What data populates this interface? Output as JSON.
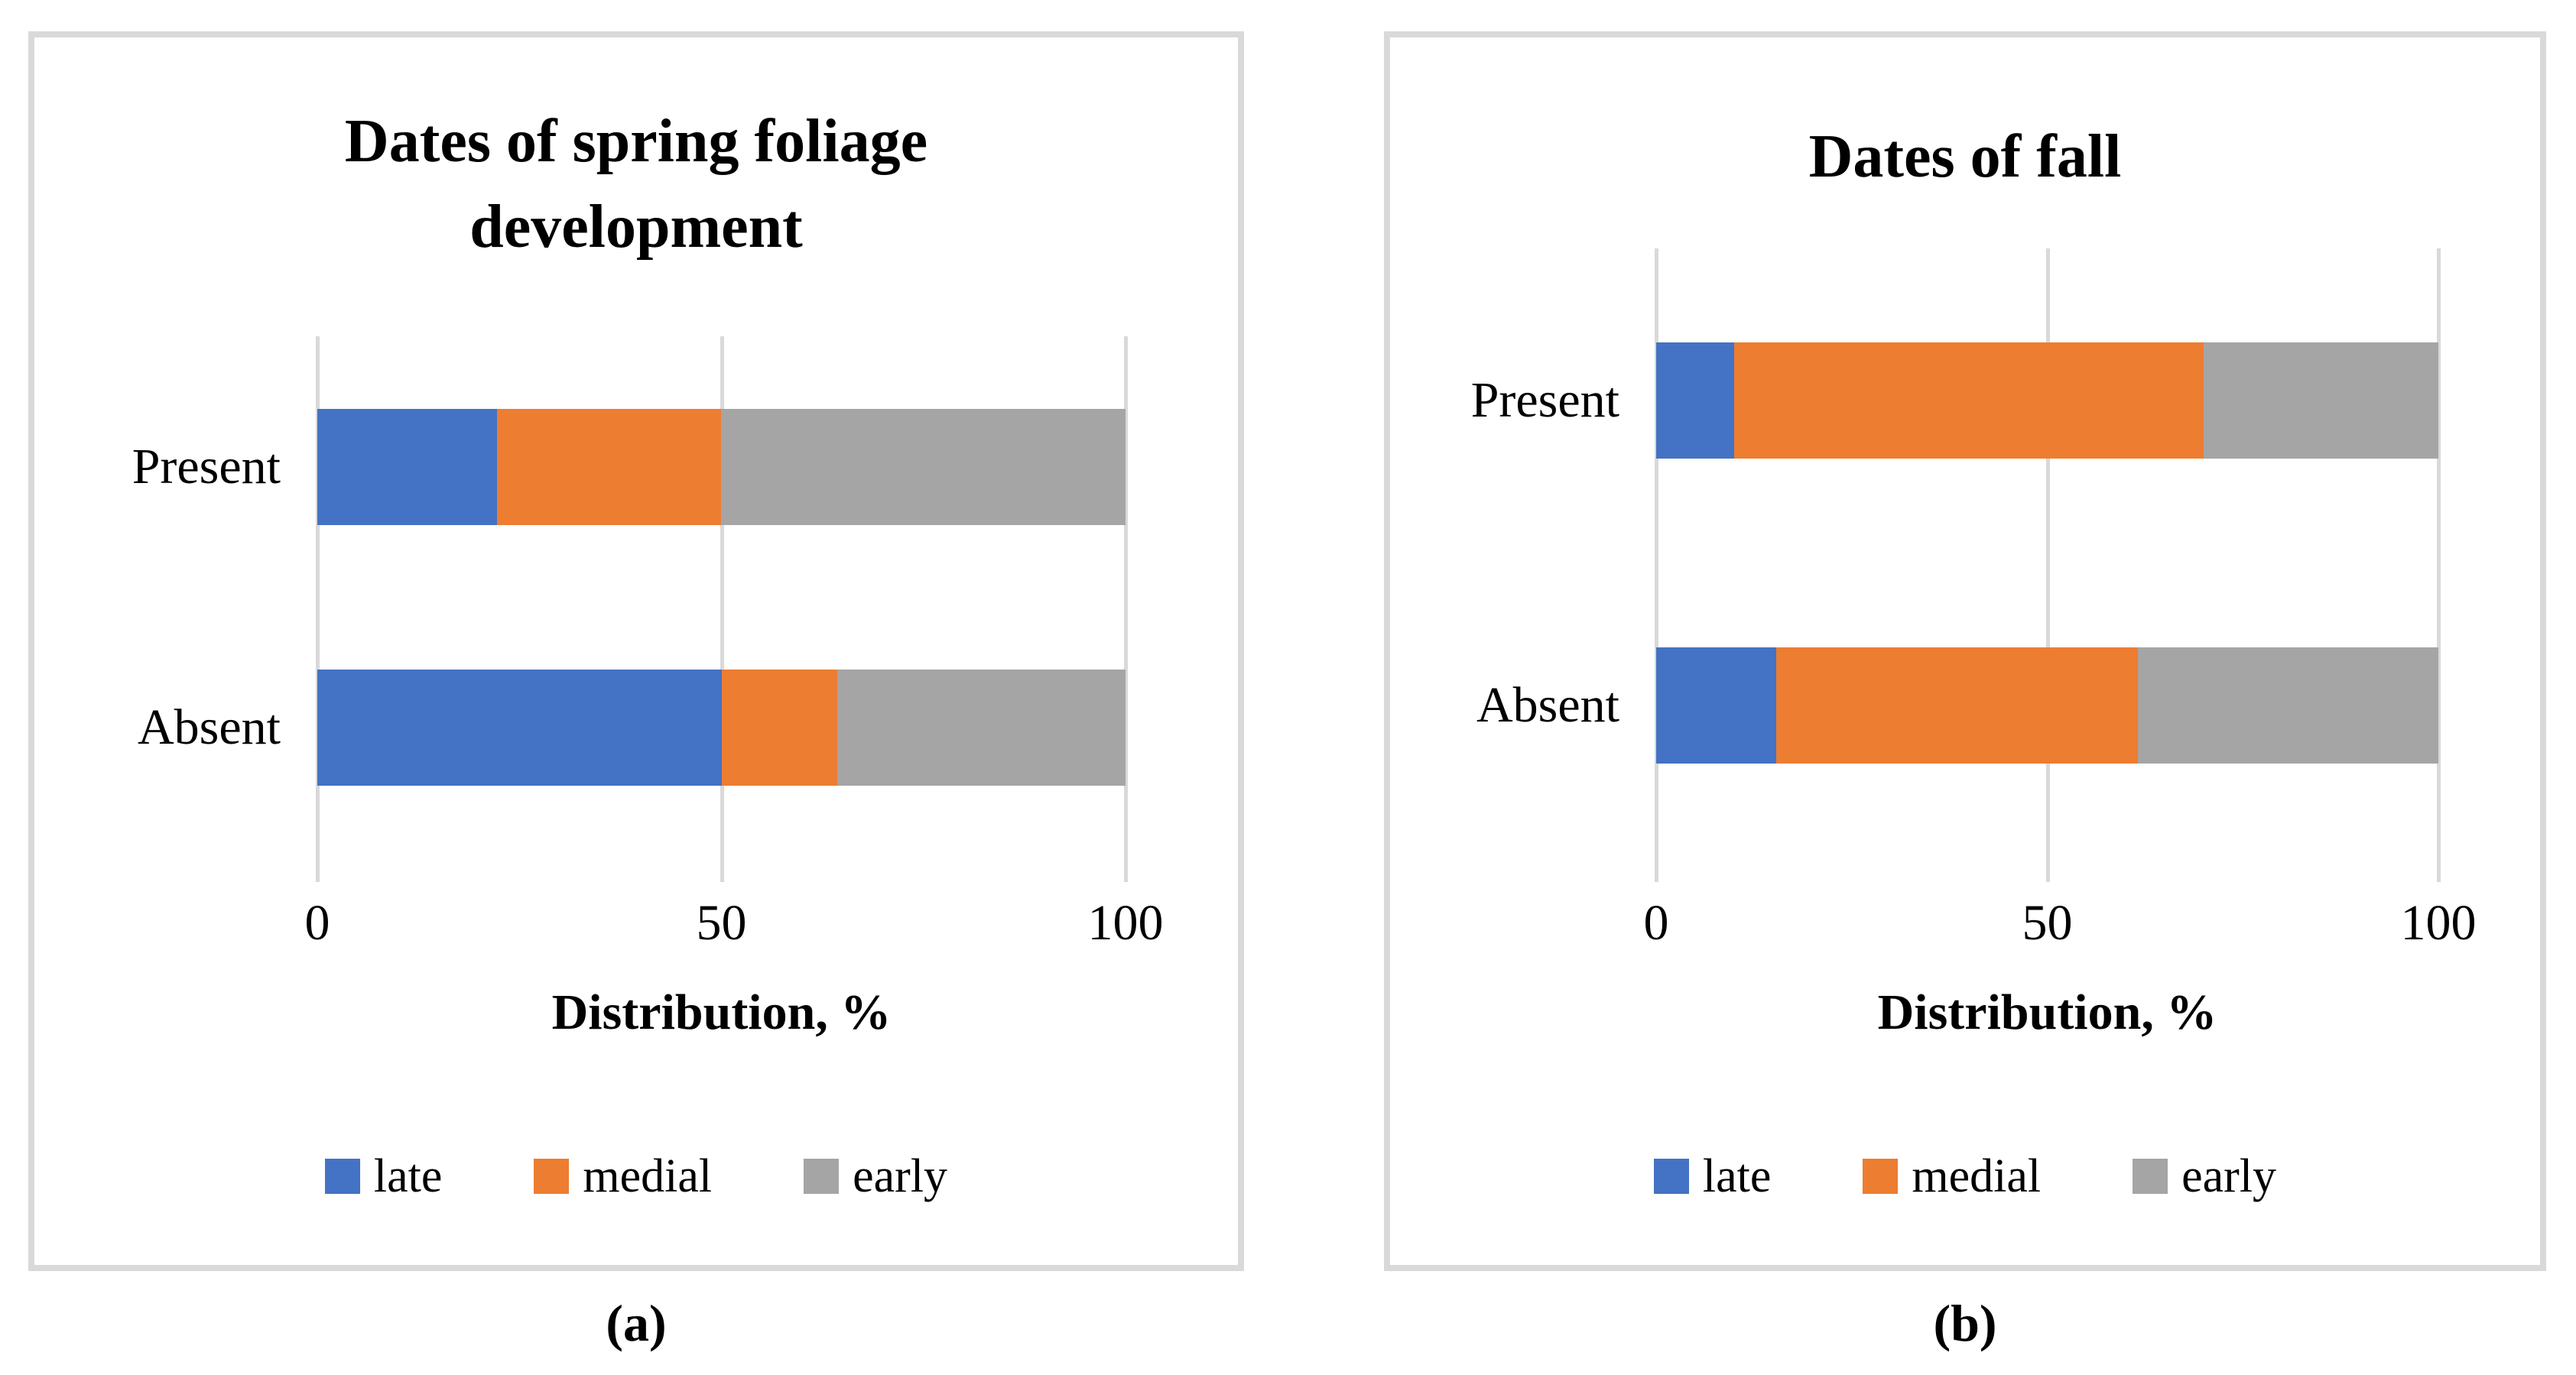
{
  "colors": {
    "late": "#4472C4",
    "medial": "#ED7D31",
    "early": "#A5A5A5",
    "gridline": "#D9D9D9",
    "panel_border": "#D9D9D9",
    "text": "#000000",
    "background": "#FFFFFF"
  },
  "chart_data": [
    {
      "type": "bar",
      "orientation": "horizontal",
      "stacked": true,
      "title": "Dates of spring foliage development",
      "title_lines": [
        "Dates of spring foliage",
        "development"
      ],
      "categories": [
        "Present",
        "Absent"
      ],
      "series": [
        {
          "name": "late",
          "color": "#4472C4",
          "values": [
            22.2,
            50.0
          ]
        },
        {
          "name": "medial",
          "color": "#ED7D31",
          "values": [
            27.8,
            14.3
          ]
        },
        {
          "name": "early",
          "color": "#A5A5A5",
          "values": [
            50.0,
            35.7
          ]
        }
      ],
      "xlabel": "Distribution, %",
      "xlim": [
        0,
        100
      ],
      "xticks": [
        "0",
        "50",
        "100"
      ],
      "grid": "vertical-only",
      "legend_position": "bottom",
      "caption": "(a)"
    },
    {
      "type": "bar",
      "orientation": "horizontal",
      "stacked": true,
      "title": "Dates of fall",
      "title_lines": [
        "Dates of fall"
      ],
      "categories": [
        "Present",
        "Absent"
      ],
      "series": [
        {
          "name": "late",
          "color": "#4472C4",
          "values": [
            10.0,
            15.4
          ]
        },
        {
          "name": "medial",
          "color": "#ED7D31",
          "values": [
            60.0,
            46.2
          ]
        },
        {
          "name": "early",
          "color": "#A5A5A5",
          "values": [
            30.0,
            38.5
          ]
        }
      ],
      "xlabel": "Distribution, %",
      "xlim": [
        0,
        100
      ],
      "xticks": [
        "0",
        "50",
        "100"
      ],
      "grid": "vertical-only",
      "legend_position": "bottom",
      "caption": "(b)"
    }
  ],
  "legend": {
    "items": [
      {
        "label": "late",
        "color": "#4472C4"
      },
      {
        "label": "medial",
        "color": "#ED7D31"
      },
      {
        "label": "early",
        "color": "#A5A5A5"
      }
    ]
  }
}
